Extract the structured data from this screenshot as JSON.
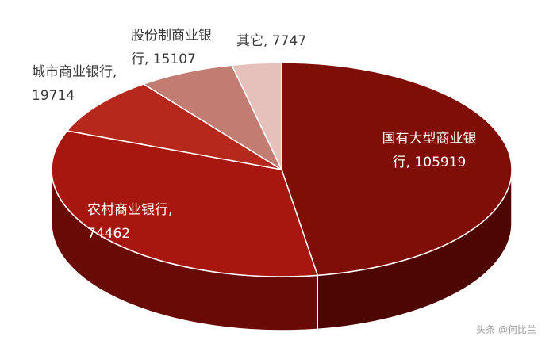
{
  "chart_data": {
    "type": "pie",
    "style": "3d",
    "slices": [
      {
        "label": "国有大型商业银行",
        "value": 105919,
        "color": "#7f0e07",
        "side": "#4e0603",
        "text_color": "#ffffff",
        "display": [
          "国有大型商业银",
          "行, 105919"
        ]
      },
      {
        "label": "农村商业银行",
        "value": 74462,
        "color": "#a8170f",
        "side": "#6a0a06",
        "text_color": "#ffffff",
        "display": [
          "农村商业银行,",
          "74462"
        ]
      },
      {
        "label": "城市商业银行",
        "value": 19714,
        "color": "#b5281b",
        "side": "#731109",
        "text_color": "#3a3a3a",
        "display": [
          "城市商业银行,",
          "19714"
        ]
      },
      {
        "label": "股份制商业银行",
        "value": 15107,
        "color": "#c27c72",
        "side": "#8b4c44",
        "text_color": "#3a3a3a",
        "display": [
          "股份制商业银",
          "行, 15107"
        ]
      },
      {
        "label": "其它",
        "value": 7747,
        "color": "#e6c1bb",
        "side": "#b48e88",
        "text_color": "#3a3a3a",
        "display": [
          "其它, 7747"
        ]
      }
    ]
  },
  "watermark": "头条 @何比兰"
}
